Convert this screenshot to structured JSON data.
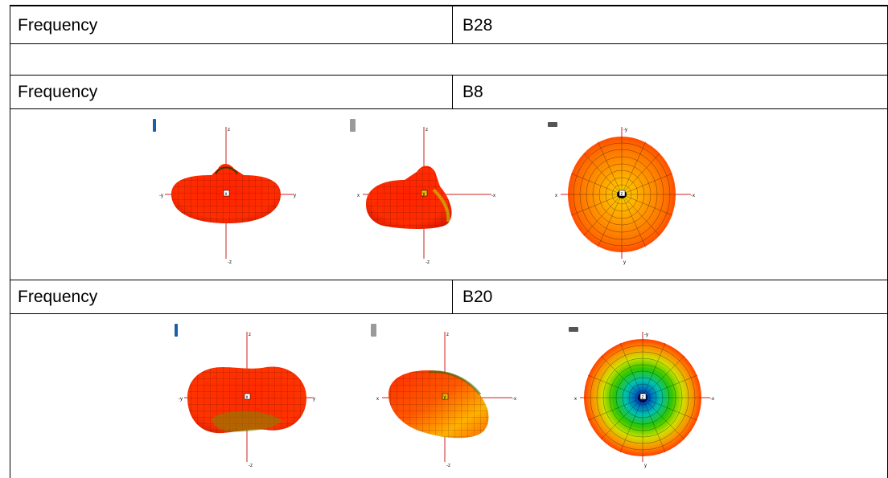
{
  "rows": [
    {
      "kind": "header",
      "label": "Frequency",
      "value": "B28"
    },
    {
      "kind": "empty"
    },
    {
      "kind": "header",
      "label": "Frequency",
      "value": "B8"
    },
    {
      "kind": "figure",
      "views": [
        {
          "orientation": "phone-upright",
          "axis_top": "z",
          "axis_bottom": "-z",
          "axis_left": "-y",
          "axis_right": "y",
          "center": "x"
        },
        {
          "orientation": "phone-side",
          "axis_top": "z",
          "axis_bottom": "-z",
          "axis_left": "x",
          "axis_right": "-x",
          "center": "y"
        },
        {
          "orientation": "phone-flat",
          "axis_top": "-y",
          "axis_bottom": "y",
          "axis_left": "x",
          "axis_right": "-x",
          "center": "z"
        }
      ]
    },
    {
      "kind": "header",
      "label": "Frequency",
      "value": "B20"
    },
    {
      "kind": "figure",
      "views": [
        {
          "orientation": "phone-upright",
          "axis_top": "z",
          "axis_bottom": "-z",
          "axis_left": "-y",
          "axis_right": "y",
          "center": "x"
        },
        {
          "orientation": "phone-side",
          "axis_top": "z",
          "axis_bottom": "-z",
          "axis_left": "x",
          "axis_right": "-x",
          "center": "y"
        },
        {
          "orientation": "phone-flat",
          "axis_top": "-y",
          "axis_bottom": "y",
          "axis_left": "x",
          "axis_right": "-x",
          "center": "z"
        }
      ]
    }
  ],
  "colors": {
    "hot": "#ff2d00",
    "orange": "#ff7a00",
    "yellow": "#e8e000",
    "green": "#19c000",
    "cyan": "#00b8c8",
    "blue": "#003d9e",
    "mesh": "#000000",
    "phone_blue": "#1a5fa8",
    "phone_gray": "#9a9a9a"
  }
}
